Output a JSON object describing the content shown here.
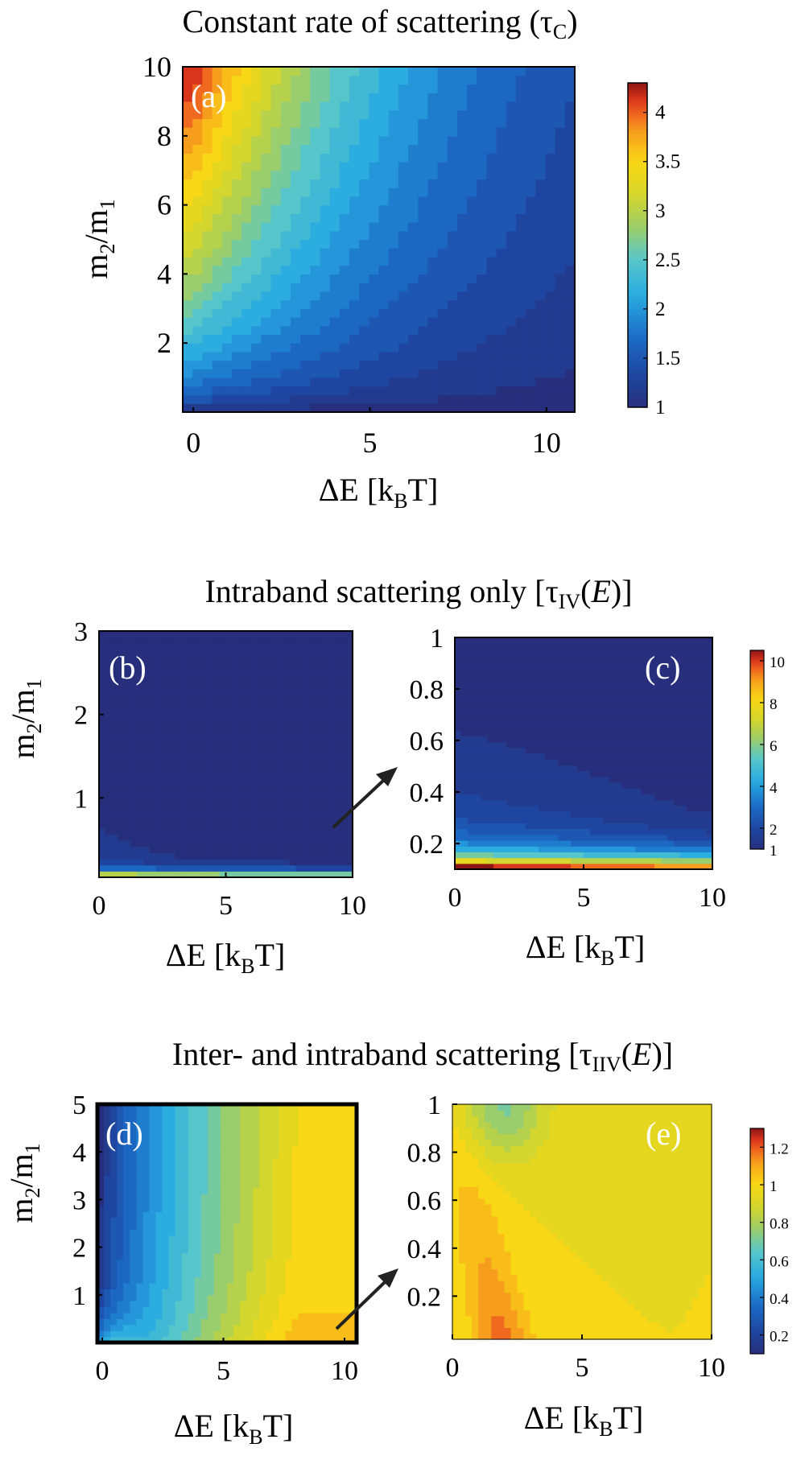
{
  "chart_data": [
    {
      "type": "heatmap",
      "panel": "a",
      "title": "Constant rate of scattering (τ_C)",
      "label": "(a)",
      "xlabel": "ΔE [k_B T]",
      "ylabel": "m_2/m_1",
      "xlim": [
        -0.3,
        10.8
      ],
      "ylim": [
        0.0,
        10.0
      ],
      "xticks": [
        0,
        5,
        10
      ],
      "yticks": [
        2,
        4,
        6,
        8,
        10
      ],
      "colorbar": {
        "min": 1.0,
        "max": 4.3,
        "ticks": [
          1,
          1.5,
          2,
          2.5,
          3,
          3.5,
          4
        ]
      },
      "levels": 20,
      "value_range": [
        1.0,
        4.3
      ]
    },
    {
      "type": "heatmap",
      "panel": "b",
      "label": "(b)",
      "xlabel": "ΔE [k_B T]",
      "ylabel": "m_2/m_1",
      "xlim": [
        0,
        10
      ],
      "ylim": [
        0.05,
        3.0
      ],
      "xticks": [
        0,
        5,
        10
      ],
      "yticks": [
        1,
        2,
        3
      ],
      "colorbar": {
        "min": 1.0,
        "max": 10.5,
        "ticks": [
          1,
          2,
          4,
          6,
          8,
          10
        ]
      },
      "levels": 20,
      "value_range": [
        1.0,
        10.5
      ]
    },
    {
      "type": "heatmap",
      "panel": "c",
      "label": "(c)",
      "xlabel": "ΔE [k_B T]",
      "ylabel": "",
      "xlim": [
        0,
        10
      ],
      "ylim": [
        0.1,
        1.0
      ],
      "xticks": [
        0,
        5,
        10
      ],
      "yticks": [
        0.2,
        0.4,
        0.6,
        0.8,
        1
      ],
      "colorbar": {
        "min": 1.0,
        "max": 10.5,
        "ticks": [
          1,
          2,
          4,
          6,
          8,
          10
        ]
      },
      "levels": 20,
      "value_range": [
        1.0,
        10.5
      ]
    },
    {
      "type": "heatmap",
      "panel": "d",
      "label": "(d)",
      "xlabel": "ΔE [k_B T]",
      "ylabel": "m_2/m_1",
      "xlim": [
        -0.2,
        10.5
      ],
      "ylim": [
        0.0,
        5.0
      ],
      "xticks": [
        0,
        5,
        10
      ],
      "yticks": [
        1,
        2,
        3,
        4,
        5
      ],
      "colorbar": {
        "min": 0.1,
        "max": 1.3,
        "ticks": [
          0.2,
          0.4,
          0.6,
          0.8,
          1,
          1.2
        ]
      },
      "levels": 20,
      "value_range": [
        0.1,
        1.3
      ]
    },
    {
      "type": "heatmap",
      "panel": "e",
      "label": "(e)",
      "xlabel": "ΔE [k_B T]",
      "ylabel": "",
      "xlim": [
        0,
        10
      ],
      "ylim": [
        0.02,
        1.0
      ],
      "xticks": [
        0,
        5,
        10
      ],
      "yticks": [
        0.2,
        0.4,
        0.6,
        0.8,
        1
      ],
      "colorbar": {
        "min": 0.1,
        "max": 1.3,
        "ticks": [
          0.2,
          0.4,
          0.6,
          0.8,
          1,
          1.2
        ]
      },
      "levels": 20,
      "value_range": [
        0.1,
        1.3
      ]
    }
  ],
  "titles": {
    "a": "Constant rate of scattering (τ",
    "a_sub": "C",
    "a_end": ")",
    "b": "Intraband scattering only  [τ",
    "b_sub": "IV",
    "b_mid": "(",
    "b_E": "E",
    "b_end": ")]",
    "d": "Inter- and intraband scattering  [τ",
    "d_sub": "IIV",
    "d_mid": "(",
    "d_E": "E",
    "d_end": ")]"
  },
  "axis_labels": {
    "x_main": "ΔE [k",
    "x_sub": "B",
    "x_end": "T]",
    "y_main": "m",
    "y_sub1": "2",
    "y_slash": "/m",
    "y_sub2": "1"
  }
}
